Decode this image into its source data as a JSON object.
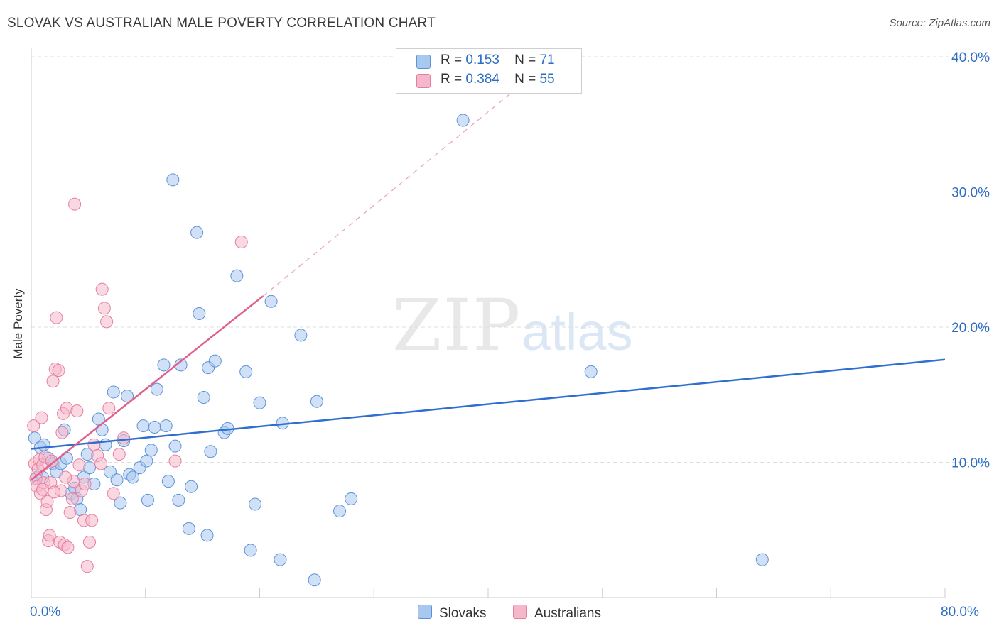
{
  "title": "SLOVAK VS AUSTRALIAN MALE POVERTY CORRELATION CHART",
  "source": "Source: ZipAtlas.com",
  "watermark": {
    "zip": "ZIP",
    "atlas": "atlas"
  },
  "legend": {
    "rows": [
      {
        "r_label": "R =",
        "r_value": "0.153",
        "n_label": "N =",
        "n_value": "71"
      },
      {
        "r_label": "R =",
        "r_value": "0.384",
        "n_label": "N =",
        "n_value": "55"
      }
    ]
  },
  "bottom_legend": {
    "slovaks": "Slovaks",
    "australians": "Australians"
  },
  "colors": {
    "blue_fill": "#a9c8f0",
    "blue_stroke": "#5b93d8",
    "blue_line": "#2f6fcf",
    "pink_fill": "#f5b8cb",
    "pink_stroke": "#e57ea0",
    "pink_line": "#e0608b",
    "tick_text": "#2d6dc4",
    "grid": "#dddddd"
  },
  "chart_data": {
    "type": "scatter",
    "title": "SLOVAK VS AUSTRALIAN MALE POVERTY CORRELATION CHART",
    "xlabel": "",
    "ylabel": "Male Poverty",
    "xlim": [
      0,
      80
    ],
    "ylim": [
      0,
      40
    ],
    "x_tick_labels": [
      "0.0%",
      "80.0%"
    ],
    "y_ticks": [
      10,
      20,
      30,
      40
    ],
    "y_tick_labels": [
      "10.0%",
      "20.0%",
      "30.0%",
      "40.0%"
    ],
    "grid": true,
    "legend_position": "top-center",
    "series": [
      {
        "name": "Slovaks",
        "color": "#a9c8f0",
        "trend": {
          "x": [
            0,
            80
          ],
          "y": [
            11.0,
            17.6
          ],
          "style": "solid"
        },
        "points": [
          [
            0.3,
            11.8
          ],
          [
            0.5,
            8.9
          ],
          [
            0.8,
            11.1
          ],
          [
            1.0,
            8.9
          ],
          [
            1.1,
            11.3
          ],
          [
            1.5,
            10.3
          ],
          [
            1.9,
            9.9
          ],
          [
            2.2,
            9.3
          ],
          [
            2.6,
            9.9
          ],
          [
            2.9,
            12.4
          ],
          [
            3.1,
            10.3
          ],
          [
            3.5,
            7.7
          ],
          [
            3.8,
            8.1
          ],
          [
            4.0,
            7.3
          ],
          [
            4.3,
            6.5
          ],
          [
            4.6,
            8.9
          ],
          [
            4.9,
            10.6
          ],
          [
            5.1,
            9.6
          ],
          [
            5.5,
            8.4
          ],
          [
            5.9,
            13.2
          ],
          [
            6.2,
            12.4
          ],
          [
            6.5,
            11.3
          ],
          [
            6.9,
            9.3
          ],
          [
            7.2,
            15.2
          ],
          [
            7.5,
            8.7
          ],
          [
            7.8,
            7.0
          ],
          [
            8.1,
            11.6
          ],
          [
            8.4,
            14.9
          ],
          [
            8.6,
            9.1
          ],
          [
            8.9,
            8.9
          ],
          [
            9.5,
            9.6
          ],
          [
            9.8,
            12.7
          ],
          [
            10.1,
            10.1
          ],
          [
            10.2,
            7.2
          ],
          [
            10.5,
            10.9
          ],
          [
            10.8,
            12.6
          ],
          [
            11.0,
            15.4
          ],
          [
            11.6,
            17.2
          ],
          [
            11.8,
            12.7
          ],
          [
            12.0,
            8.6
          ],
          [
            12.4,
            30.9
          ],
          [
            12.6,
            11.2
          ],
          [
            12.9,
            7.2
          ],
          [
            13.1,
            17.2
          ],
          [
            13.8,
            5.1
          ],
          [
            14.0,
            8.2
          ],
          [
            14.5,
            27.0
          ],
          [
            14.7,
            21.0
          ],
          [
            15.1,
            14.8
          ],
          [
            15.4,
            4.6
          ],
          [
            15.5,
            17.0
          ],
          [
            15.7,
            10.8
          ],
          [
            16.1,
            17.5
          ],
          [
            16.9,
            12.2
          ],
          [
            17.2,
            12.5
          ],
          [
            18.0,
            23.8
          ],
          [
            18.8,
            16.7
          ],
          [
            19.2,
            3.5
          ],
          [
            19.6,
            6.9
          ],
          [
            20.0,
            14.4
          ],
          [
            21.0,
            21.9
          ],
          [
            22.0,
            12.9
          ],
          [
            23.6,
            19.4
          ],
          [
            25.0,
            14.5
          ],
          [
            27.0,
            6.4
          ],
          [
            28.0,
            7.3
          ],
          [
            37.8,
            35.3
          ],
          [
            49.0,
            16.7
          ],
          [
            64.0,
            2.8
          ],
          [
            24.8,
            1.3
          ],
          [
            21.8,
            2.8
          ]
        ]
      },
      {
        "name": "Australians",
        "color": "#f5b8cb",
        "trend": {
          "x": [
            0,
            20.3
          ],
          "y": [
            8.7,
            22.3
          ],
          "style": "solid",
          "extension": {
            "x": [
              20.3,
              43
            ],
            "y": [
              22.3,
              38.0
            ],
            "style": "dashed"
          }
        },
        "points": [
          [
            0.2,
            12.7
          ],
          [
            0.3,
            9.9
          ],
          [
            0.4,
            8.8
          ],
          [
            0.5,
            8.2
          ],
          [
            0.6,
            9.5
          ],
          [
            0.7,
            10.2
          ],
          [
            0.8,
            7.7
          ],
          [
            0.9,
            13.3
          ],
          [
            1.0,
            9.8
          ],
          [
            1.1,
            8.5
          ],
          [
            1.2,
            10.4
          ],
          [
            1.3,
            6.5
          ],
          [
            1.4,
            7.1
          ],
          [
            1.5,
            4.2
          ],
          [
            1.6,
            4.6
          ],
          [
            1.7,
            8.5
          ],
          [
            1.8,
            10.1
          ],
          [
            1.9,
            16.0
          ],
          [
            2.1,
            16.9
          ],
          [
            2.2,
            20.7
          ],
          [
            2.4,
            16.8
          ],
          [
            2.5,
            4.1
          ],
          [
            2.6,
            7.9
          ],
          [
            2.7,
            12.2
          ],
          [
            2.8,
            13.6
          ],
          [
            2.9,
            3.9
          ],
          [
            3.1,
            14.0
          ],
          [
            3.2,
            3.7
          ],
          [
            3.4,
            6.3
          ],
          [
            3.6,
            7.3
          ],
          [
            3.7,
            8.6
          ],
          [
            3.8,
            29.1
          ],
          [
            4.0,
            13.8
          ],
          [
            4.2,
            9.8
          ],
          [
            4.4,
            7.9
          ],
          [
            4.6,
            5.7
          ],
          [
            4.7,
            8.4
          ],
          [
            4.9,
            2.3
          ],
          [
            5.1,
            4.1
          ],
          [
            5.3,
            5.7
          ],
          [
            5.5,
            11.3
          ],
          [
            5.8,
            10.5
          ],
          [
            6.1,
            9.9
          ],
          [
            6.2,
            22.8
          ],
          [
            6.4,
            21.4
          ],
          [
            6.6,
            20.4
          ],
          [
            6.8,
            14.0
          ],
          [
            7.2,
            7.7
          ],
          [
            7.7,
            10.6
          ],
          [
            8.1,
            11.8
          ],
          [
            12.6,
            10.1
          ],
          [
            18.4,
            26.3
          ],
          [
            1.0,
            8.0
          ],
          [
            2.0,
            7.8
          ],
          [
            3.0,
            8.9
          ]
        ]
      }
    ]
  },
  "axis": {
    "ylabel": "Male Poverty",
    "x_left": "0.0%",
    "x_right": "80.0%"
  }
}
